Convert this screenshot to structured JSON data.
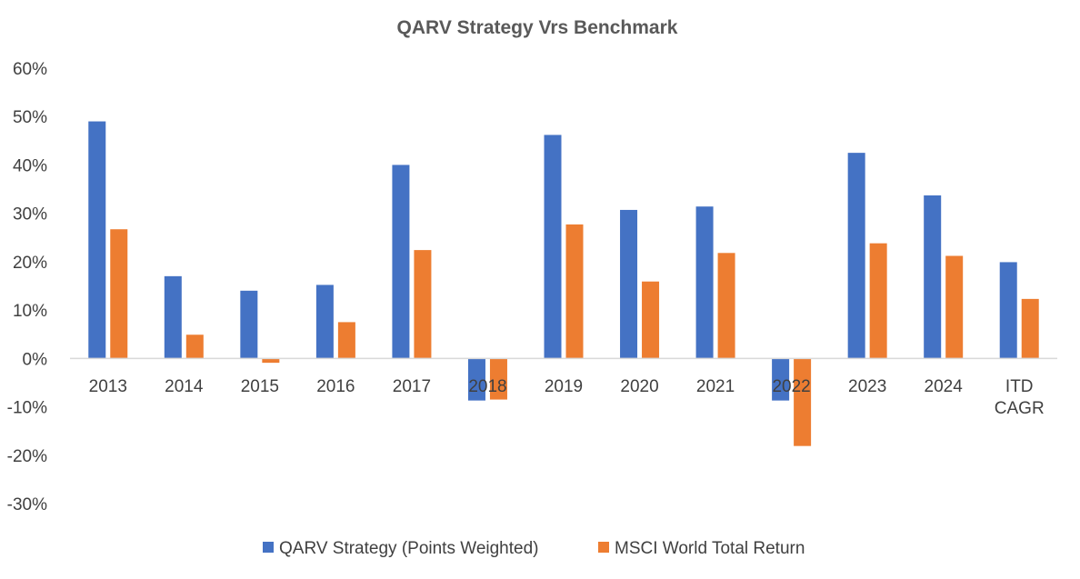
{
  "chart_data": {
    "type": "bar",
    "title": "QARV Strategy Vrs  Benchmark",
    "xlabel": "",
    "ylabel": "",
    "categories": [
      "2013",
      "2014",
      "2015",
      "2016",
      "2017",
      "2018",
      "2019",
      "2020",
      "2021",
      "2022",
      "2023",
      "2024",
      "ITD CAGR"
    ],
    "category_lines": [
      [
        "2013"
      ],
      [
        "2014"
      ],
      [
        "2015"
      ],
      [
        "2016"
      ],
      [
        "2017"
      ],
      [
        "2018"
      ],
      [
        "2019"
      ],
      [
        "2020"
      ],
      [
        "2021"
      ],
      [
        "2022"
      ],
      [
        "2023"
      ],
      [
        "2024"
      ],
      [
        "ITD",
        "CAGR"
      ]
    ],
    "series": [
      {
        "name": "QARV Strategy (Points Weighted)",
        "color": "#4472C4",
        "values": [
          49.0,
          17.0,
          14.0,
          15.2,
          40.0,
          -8.7,
          46.2,
          30.7,
          31.4,
          -8.7,
          42.5,
          33.7,
          19.9
        ]
      },
      {
        "name": "MSCI World Total Return",
        "color": "#ED7D31",
        "values": [
          26.7,
          4.9,
          -0.9,
          7.5,
          22.4,
          -8.5,
          27.7,
          15.9,
          21.8,
          -18.1,
          23.8,
          21.2,
          12.3
        ]
      }
    ],
    "ylim": [
      -30,
      60
    ],
    "yticks": [
      60,
      50,
      40,
      30,
      20,
      10,
      0,
      -10,
      -20,
      -30
    ],
    "ytick_labels": [
      "60%",
      "50%",
      "40%",
      "30%",
      "20%",
      "10%",
      "0%",
      "-10%",
      "-20%",
      "-30%"
    ],
    "grid": false,
    "legend_position": "bottom"
  }
}
